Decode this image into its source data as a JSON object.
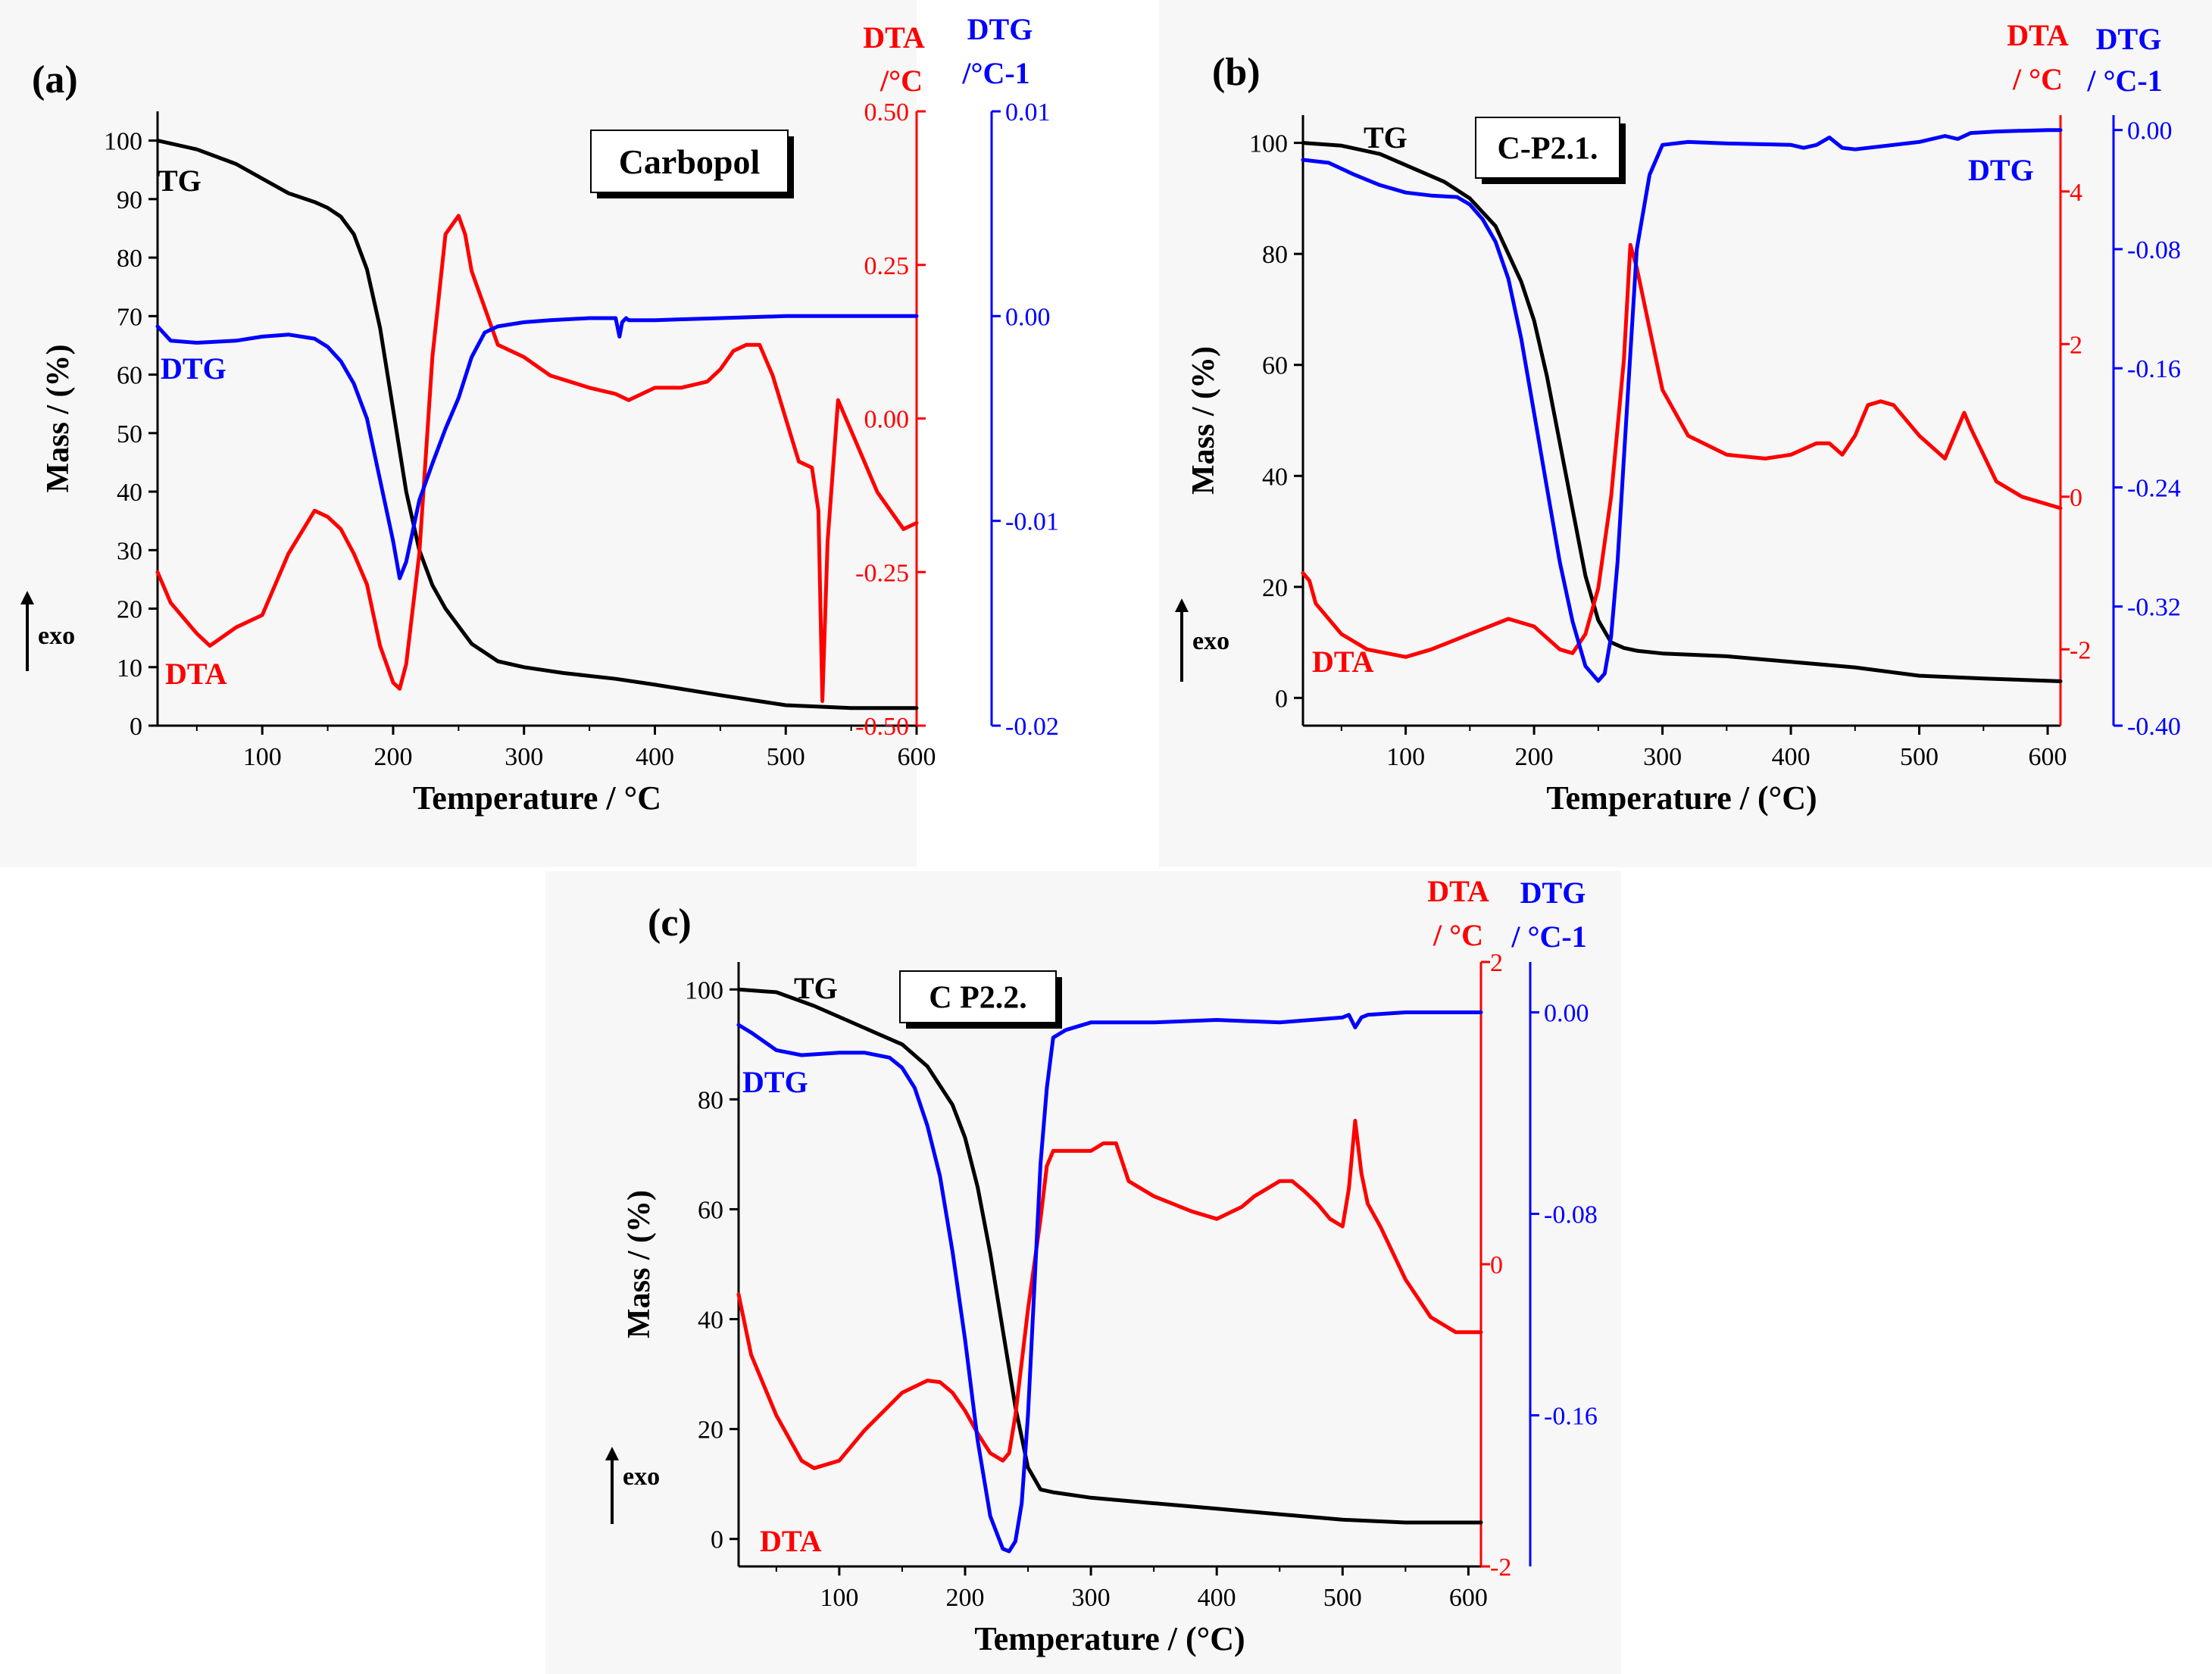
{
  "colors": {
    "tg": "#000000",
    "dta": "#ff0000",
    "dtg": "#0000ff",
    "axis": "#000000"
  },
  "exo_label": "exo",
  "chart_data": [
    {
      "id": "a",
      "type": "line",
      "panel_label": "(a)",
      "title": "Carbopol",
      "xlabel": "Temperature / °C",
      "ylabel": "Mass / (%)",
      "xlim": [
        20,
        600
      ],
      "ylim": [
        0,
        105
      ],
      "xticks": [
        100,
        200,
        300,
        400,
        500,
        600
      ],
      "yticks": [
        0,
        10,
        20,
        30,
        40,
        50,
        60,
        70,
        80,
        90,
        100
      ],
      "dta_axis": {
        "label": "DTA",
        "unit": "/°C",
        "lim": [
          -0.5,
          0.5
        ],
        "ticks": [
          -0.5,
          -0.25,
          0.0,
          0.25,
          0.5
        ],
        "tick_labels": [
          "-0.50",
          "-0.25",
          "0.00",
          "0.25",
          "0.50"
        ]
      },
      "dtg_axis": {
        "label": "DTG",
        "unit": "/°C-1",
        "lim": [
          -0.02,
          0.01
        ],
        "ticks": [
          -0.02,
          -0.01,
          0.0,
          0.01
        ],
        "tick_labels": [
          "-0.02",
          "-0.01",
          "0.00",
          "0.01"
        ]
      },
      "curve_labels": {
        "tg": "TG",
        "dtg": "DTG",
        "dta": "DTA"
      },
      "series": [
        {
          "name": "TG",
          "axis": "left",
          "x": [
            20,
            50,
            80,
            100,
            120,
            140,
            150,
            160,
            170,
            180,
            190,
            200,
            210,
            220,
            230,
            240,
            260,
            280,
            300,
            330,
            370,
            400,
            450,
            500,
            550,
            600
          ],
          "y": [
            100,
            98.5,
            96,
            93.5,
            91,
            89.5,
            88.5,
            87,
            84,
            78,
            68,
            54,
            40,
            30,
            24,
            20,
            14,
            11,
            10,
            9,
            8,
            7,
            5.2,
            3.5,
            3,
            3
          ]
        },
        {
          "name": "DTA",
          "axis": "dta",
          "x": [
            20,
            30,
            50,
            60,
            80,
            100,
            120,
            140,
            150,
            160,
            170,
            180,
            190,
            200,
            205,
            210,
            220,
            230,
            240,
            250,
            255,
            260,
            270,
            280,
            300,
            320,
            350,
            370,
            380,
            400,
            420,
            440,
            450,
            460,
            470,
            480,
            490,
            500,
            510,
            520,
            525,
            528,
            532,
            540,
            550,
            570,
            590,
            600
          ],
          "y": [
            -0.25,
            -0.3,
            -0.35,
            -0.37,
            -0.34,
            -0.32,
            -0.22,
            -0.15,
            -0.16,
            -0.18,
            -0.22,
            -0.27,
            -0.37,
            -0.43,
            -0.44,
            -0.4,
            -0.22,
            0.1,
            0.3,
            0.33,
            0.3,
            0.24,
            0.18,
            0.12,
            0.1,
            0.07,
            0.05,
            0.04,
            0.03,
            0.05,
            0.05,
            0.06,
            0.08,
            0.11,
            0.12,
            0.12,
            0.07,
            0.0,
            -0.07,
            -0.08,
            -0.15,
            -0.46,
            -0.2,
            0.03,
            -0.02,
            -0.12,
            -0.18,
            -0.17
          ]
        },
        {
          "name": "DTG",
          "axis": "dtg",
          "x": [
            20,
            30,
            50,
            80,
            100,
            120,
            140,
            150,
            160,
            170,
            180,
            190,
            200,
            205,
            210,
            220,
            230,
            240,
            250,
            260,
            270,
            280,
            300,
            320,
            350,
            370,
            373,
            375,
            378,
            380,
            400,
            450,
            500,
            550,
            600
          ],
          "y": [
            -0.0005,
            -0.0012,
            -0.0013,
            -0.0012,
            -0.001,
            -0.0009,
            -0.0011,
            -0.0015,
            -0.0022,
            -0.0033,
            -0.005,
            -0.008,
            -0.011,
            -0.0128,
            -0.012,
            -0.009,
            -0.0072,
            -0.0055,
            -0.004,
            -0.002,
            -0.0008,
            -0.0005,
            -0.0003,
            -0.0002,
            -0.0001,
            -0.0001,
            -0.001,
            -0.0003,
            -0.0001,
            -0.0002,
            -0.0002,
            -0.0001,
            0.0,
            0.0,
            0.0
          ]
        }
      ]
    },
    {
      "id": "b",
      "type": "line",
      "panel_label": "(b)",
      "title": "C-P2.1.",
      "xlabel": "Temperature / (°C)",
      "ylabel": "Mass / (%)",
      "xlim": [
        20,
        610
      ],
      "ylim": [
        -5,
        105
      ],
      "xticks": [
        100,
        200,
        300,
        400,
        500,
        600
      ],
      "yticks": [
        0,
        20,
        40,
        60,
        80,
        100
      ],
      "dta_axis": {
        "label": "DTA",
        "unit": "/ °C",
        "lim": [
          -3,
          5
        ],
        "ticks": [
          -2,
          0,
          2,
          4
        ],
        "tick_labels": [
          "-2",
          "0",
          "2",
          "4"
        ]
      },
      "dtg_axis": {
        "label": "DTG",
        "unit": "/ °C-1",
        "lim": [
          -0.4,
          0.01
        ],
        "ticks": [
          -0.4,
          -0.32,
          -0.24,
          -0.16,
          -0.08,
          0.0
        ],
        "tick_labels": [
          "-0.40",
          "-0.32",
          "-0.24",
          "-0.16",
          "-0.08",
          "0.00"
        ]
      },
      "curve_labels": {
        "tg": "TG",
        "dtg": "DTG",
        "dta": "DTA"
      },
      "series": [
        {
          "name": "TG",
          "axis": "left",
          "x": [
            20,
            50,
            80,
            100,
            130,
            150,
            170,
            190,
            200,
            210,
            220,
            230,
            240,
            250,
            260,
            270,
            280,
            300,
            350,
            400,
            450,
            500,
            550,
            610
          ],
          "y": [
            100,
            99.5,
            98,
            96,
            93,
            90,
            85,
            75,
            68,
            58,
            46,
            34,
            22,
            14,
            10,
            9,
            8.5,
            8,
            7.5,
            6.5,
            5.5,
            4,
            3.5,
            3
          ]
        },
        {
          "name": "DTA",
          "axis": "dta",
          "x": [
            20,
            25,
            30,
            50,
            70,
            100,
            120,
            150,
            180,
            200,
            220,
            230,
            240,
            250,
            260,
            270,
            275,
            280,
            290,
            300,
            320,
            350,
            380,
            400,
            420,
            430,
            440,
            450,
            460,
            470,
            480,
            500,
            520,
            530,
            535,
            540,
            560,
            580,
            610
          ],
          "y": [
            -1.0,
            -1.1,
            -1.4,
            -1.8,
            -2.0,
            -2.1,
            -2.0,
            -1.8,
            -1.6,
            -1.7,
            -2.0,
            -2.05,
            -1.8,
            -1.2,
            0.0,
            1.8,
            3.3,
            3.0,
            2.2,
            1.4,
            0.8,
            0.55,
            0.5,
            0.55,
            0.7,
            0.7,
            0.55,
            0.8,
            1.2,
            1.25,
            1.2,
            0.8,
            0.5,
            0.9,
            1.1,
            0.9,
            0.2,
            0.0,
            -0.15
          ]
        },
        {
          "name": "DTG",
          "axis": "dtg",
          "x": [
            20,
            40,
            60,
            80,
            100,
            120,
            140,
            150,
            160,
            170,
            180,
            190,
            200,
            210,
            220,
            230,
            240,
            250,
            255,
            260,
            265,
            270,
            275,
            280,
            290,
            300,
            320,
            350,
            400,
            410,
            420,
            430,
            440,
            450,
            500,
            520,
            530,
            540,
            560,
            600,
            610
          ],
          "y": [
            -0.02,
            -0.022,
            -0.03,
            -0.037,
            -0.042,
            -0.044,
            -0.045,
            -0.05,
            -0.06,
            -0.075,
            -0.1,
            -0.14,
            -0.19,
            -0.24,
            -0.29,
            -0.33,
            -0.36,
            -0.37,
            -0.365,
            -0.34,
            -0.29,
            -0.22,
            -0.15,
            -0.08,
            -0.03,
            -0.01,
            -0.008,
            -0.009,
            -0.01,
            -0.012,
            -0.01,
            -0.005,
            -0.012,
            -0.013,
            -0.008,
            -0.004,
            -0.006,
            -0.002,
            -0.001,
            0.0,
            0.0
          ]
        }
      ]
    },
    {
      "id": "c",
      "type": "line",
      "panel_label": "(c)",
      "title": "C P2.2.",
      "xlabel": "Temperature / (°C)",
      "ylabel": "Mass / (%)",
      "xlim": [
        20,
        610
      ],
      "ylim": [
        -5,
        105
      ],
      "xticks": [
        100,
        200,
        300,
        400,
        500,
        600
      ],
      "yticks": [
        0,
        20,
        40,
        60,
        80,
        100
      ],
      "dta_axis": {
        "label": "DTA",
        "unit": "/ °C",
        "lim": [
          -2,
          2
        ],
        "ticks": [
          -2,
          0,
          2
        ],
        "tick_labels": [
          "-2",
          "0",
          "2"
        ]
      },
      "dtg_axis": {
        "label": "DTG",
        "unit": "/ °C-1",
        "lim": [
          -0.22,
          0.02
        ],
        "ticks": [
          -0.16,
          -0.08,
          0.0
        ],
        "tick_labels": [
          "-0.16",
          "-0.08",
          "0.00"
        ]
      },
      "curve_labels": {
        "tg": "TG",
        "dtg": "DTG",
        "dta": "DTA"
      },
      "series": [
        {
          "name": "TG",
          "axis": "left",
          "x": [
            20,
            50,
            80,
            100,
            130,
            150,
            170,
            190,
            200,
            210,
            220,
            230,
            240,
            250,
            260,
            270,
            300,
            350,
            400,
            450,
            500,
            550,
            610
          ],
          "y": [
            100,
            99.5,
            97,
            95,
            92,
            90,
            86,
            79,
            73,
            64,
            52,
            38,
            24,
            13,
            9,
            8.5,
            7.5,
            6.5,
            5.5,
            4.5,
            3.5,
            3,
            3
          ]
        },
        {
          "name": "DTA",
          "axis": "dta",
          "x": [
            20,
            30,
            50,
            70,
            80,
            100,
            120,
            150,
            170,
            180,
            190,
            200,
            210,
            220,
            230,
            235,
            240,
            250,
            260,
            265,
            270,
            280,
            300,
            310,
            320,
            330,
            350,
            380,
            400,
            420,
            430,
            440,
            450,
            460,
            470,
            480,
            490,
            500,
            505,
            510,
            515,
            520,
            530,
            550,
            570,
            590,
            600,
            610
          ],
          "y": [
            -0.2,
            -0.6,
            -1.0,
            -1.3,
            -1.35,
            -1.3,
            -1.1,
            -0.85,
            -0.77,
            -0.78,
            -0.85,
            -0.97,
            -1.12,
            -1.25,
            -1.3,
            -1.25,
            -1.0,
            -0.3,
            0.3,
            0.65,
            0.75,
            0.75,
            0.75,
            0.8,
            0.8,
            0.55,
            0.45,
            0.35,
            0.3,
            0.38,
            0.45,
            0.5,
            0.55,
            0.55,
            0.48,
            0.4,
            0.3,
            0.25,
            0.5,
            0.95,
            0.6,
            0.4,
            0.25,
            -0.1,
            -0.35,
            -0.45,
            -0.45,
            -0.45
          ]
        },
        {
          "name": "DTG",
          "axis": "dtg",
          "x": [
            20,
            30,
            50,
            70,
            100,
            120,
            140,
            150,
            160,
            170,
            180,
            190,
            200,
            210,
            220,
            230,
            235,
            240,
            245,
            250,
            255,
            260,
            265,
            270,
            280,
            300,
            350,
            400,
            450,
            500,
            505,
            510,
            515,
            520,
            550,
            600,
            610
          ],
          "y": [
            -0.005,
            -0.008,
            -0.015,
            -0.017,
            -0.016,
            -0.016,
            -0.018,
            -0.022,
            -0.03,
            -0.045,
            -0.065,
            -0.095,
            -0.13,
            -0.17,
            -0.2,
            -0.213,
            -0.214,
            -0.21,
            -0.195,
            -0.16,
            -0.11,
            -0.06,
            -0.03,
            -0.01,
            -0.007,
            -0.004,
            -0.004,
            -0.003,
            -0.004,
            -0.002,
            -0.001,
            -0.006,
            -0.002,
            -0.001,
            0.0,
            0.0,
            0.0
          ]
        }
      ]
    }
  ]
}
